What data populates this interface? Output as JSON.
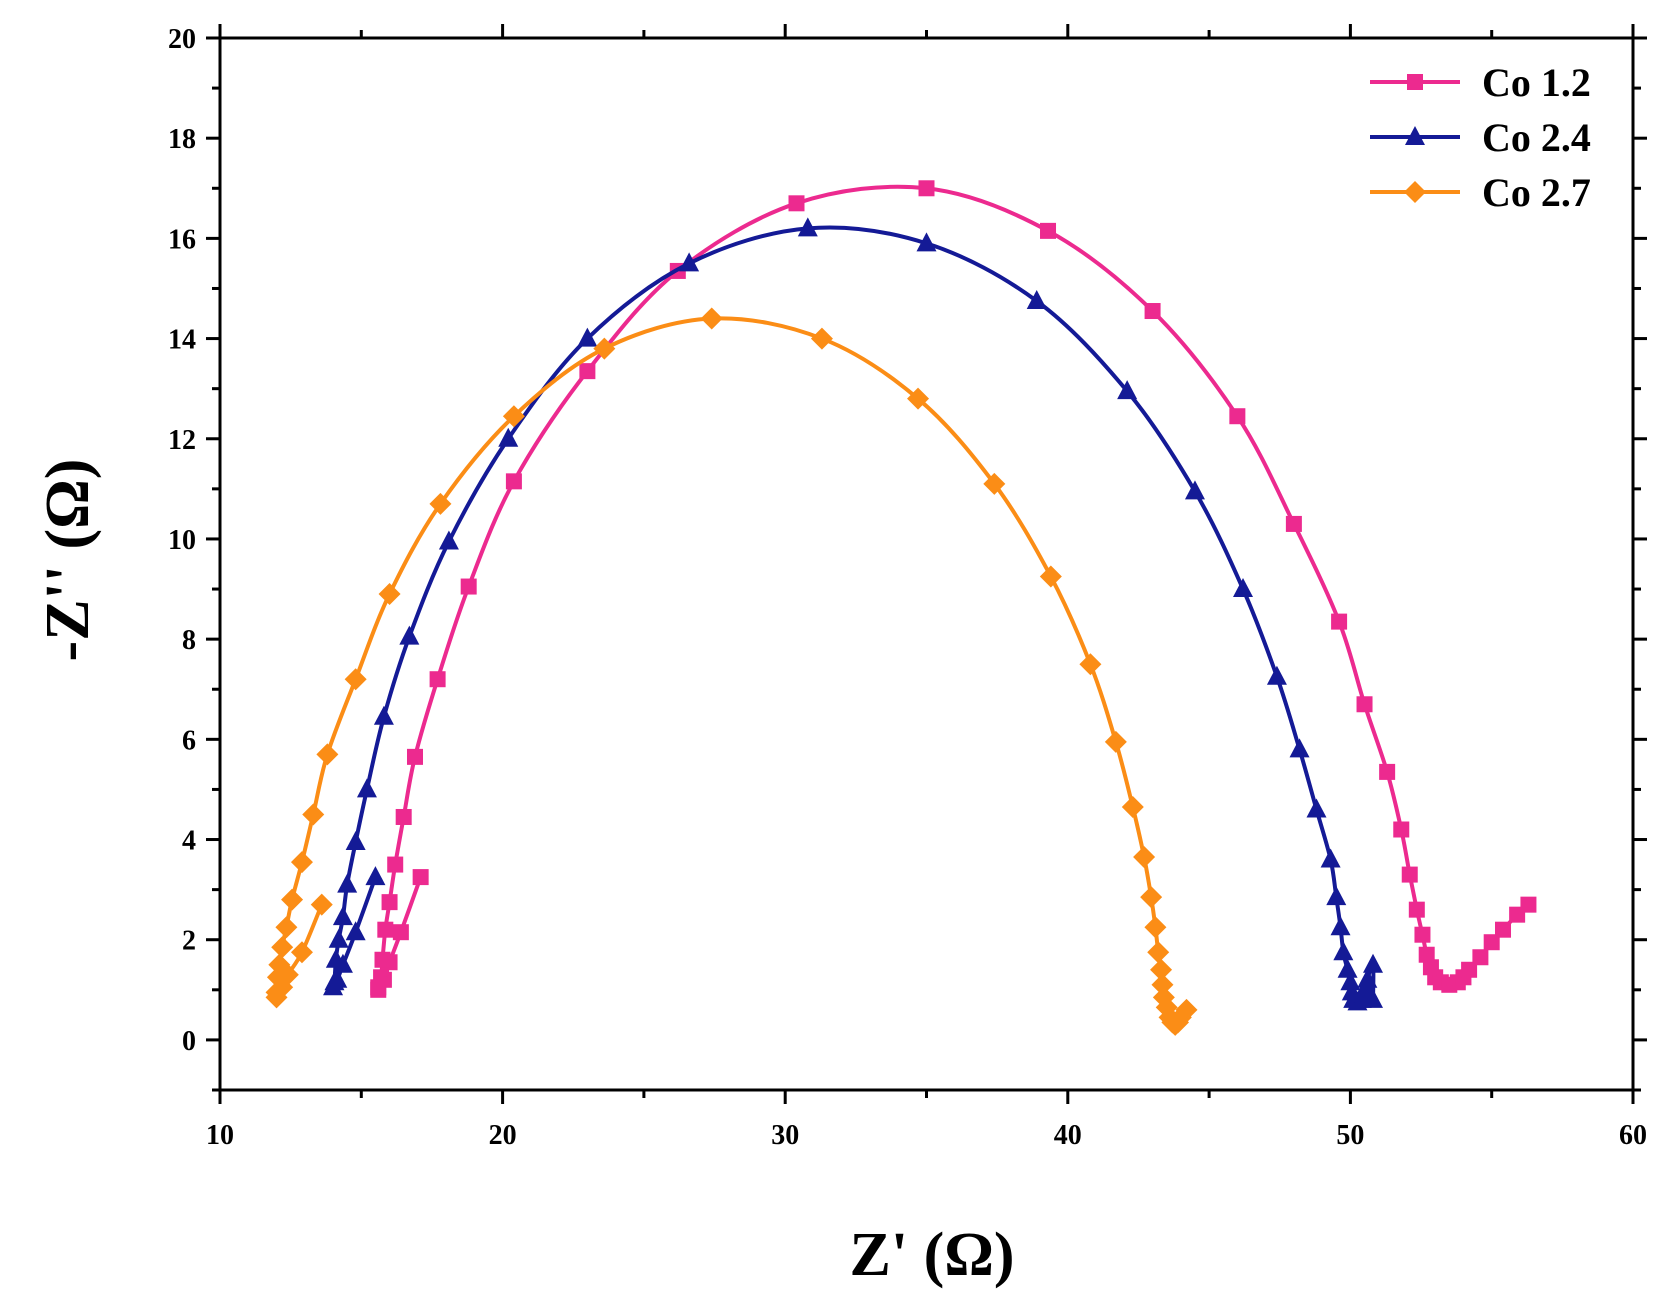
{
  "chart_data": {
    "type": "line",
    "title": "",
    "xlabel": "Z' (Ω)",
    "ylabel": "-Z'' (Ω)",
    "xlim": [
      10,
      60
    ],
    "ylim": [
      -1,
      20
    ],
    "x_ticks": [
      10,
      20,
      30,
      40,
      50,
      60
    ],
    "y_ticks": [
      0,
      2,
      4,
      6,
      8,
      10,
      12,
      14,
      16,
      18,
      20
    ],
    "x_tick_labels": [
      "10",
      "20",
      "30",
      "40",
      "50",
      "60"
    ],
    "y_tick_labels": [
      "0",
      "2",
      "4",
      "6",
      "8",
      "10",
      "12",
      "14",
      "16",
      "18",
      "20"
    ],
    "grid": false,
    "legend_position": "top-right",
    "series": [
      {
        "name": "Co 1.2",
        "color": "#ec2a8f",
        "marker": "square",
        "points": [
          [
            17.1,
            3.25
          ],
          [
            16.4,
            2.15
          ],
          [
            16.0,
            1.55
          ],
          [
            15.8,
            1.2
          ],
          [
            15.6,
            1.0
          ],
          [
            15.6,
            1.05
          ],
          [
            15.7,
            1.25
          ],
          [
            15.75,
            1.6
          ],
          [
            15.85,
            2.2
          ],
          [
            16.0,
            2.75
          ],
          [
            16.2,
            3.5
          ],
          [
            16.5,
            4.45
          ],
          [
            16.9,
            5.65
          ],
          [
            17.7,
            7.2
          ],
          [
            18.8,
            9.05
          ],
          [
            20.4,
            11.15
          ],
          [
            23.0,
            13.35
          ],
          [
            26.2,
            15.35
          ],
          [
            30.4,
            16.7
          ],
          [
            35.0,
            17.0
          ],
          [
            39.3,
            16.15
          ],
          [
            43.0,
            14.55
          ],
          [
            46.0,
            12.45
          ],
          [
            48.0,
            10.3
          ],
          [
            49.6,
            8.35
          ],
          [
            50.5,
            6.7
          ],
          [
            51.3,
            5.35
          ],
          [
            51.8,
            4.2
          ],
          [
            52.1,
            3.3
          ],
          [
            52.35,
            2.6
          ],
          [
            52.55,
            2.1
          ],
          [
            52.7,
            1.7
          ],
          [
            52.85,
            1.45
          ],
          [
            53.0,
            1.25
          ],
          [
            53.2,
            1.15
          ],
          [
            53.5,
            1.1
          ],
          [
            53.8,
            1.15
          ],
          [
            54.0,
            1.25
          ],
          [
            54.2,
            1.4
          ],
          [
            54.6,
            1.65
          ],
          [
            55.0,
            1.95
          ],
          [
            55.4,
            2.2
          ],
          [
            55.9,
            2.5
          ],
          [
            56.3,
            2.7
          ]
        ]
      },
      {
        "name": "Co 2.4",
        "color": "#141a96",
        "marker": "triangle",
        "points": [
          [
            15.5,
            3.25
          ],
          [
            14.8,
            2.15
          ],
          [
            14.35,
            1.5
          ],
          [
            14.15,
            1.2
          ],
          [
            14.0,
            1.05
          ],
          [
            14.05,
            1.15
          ],
          [
            14.1,
            1.6
          ],
          [
            14.2,
            2.0
          ],
          [
            14.35,
            2.45
          ],
          [
            14.5,
            3.1
          ],
          [
            14.8,
            3.95
          ],
          [
            15.2,
            5.0
          ],
          [
            15.8,
            6.45
          ],
          [
            16.7,
            8.05
          ],
          [
            18.1,
            9.95
          ],
          [
            20.2,
            12.0
          ],
          [
            23.0,
            14.0
          ],
          [
            26.6,
            15.5
          ],
          [
            30.8,
            16.2
          ],
          [
            35.0,
            15.9
          ],
          [
            38.9,
            14.75
          ],
          [
            42.1,
            12.95
          ],
          [
            44.5,
            10.95
          ],
          [
            46.2,
            9.0
          ],
          [
            47.4,
            7.25
          ],
          [
            48.2,
            5.8
          ],
          [
            48.8,
            4.6
          ],
          [
            49.3,
            3.6
          ],
          [
            49.5,
            2.85
          ],
          [
            49.65,
            2.25
          ],
          [
            49.75,
            1.75
          ],
          [
            49.9,
            1.4
          ],
          [
            50.0,
            1.15
          ],
          [
            50.05,
            0.95
          ],
          [
            50.1,
            0.8
          ],
          [
            50.25,
            0.75
          ],
          [
            50.4,
            0.8
          ],
          [
            50.5,
            0.9
          ],
          [
            50.55,
            1.05
          ],
          [
            50.6,
            1.2
          ],
          [
            50.8,
            1.5
          ],
          [
            50.8,
            0.8
          ]
        ]
      },
      {
        "name": "Co 2.7",
        "color": "#fb8d16",
        "marker": "diamond",
        "points": [
          [
            13.6,
            2.7
          ],
          [
            12.9,
            1.75
          ],
          [
            12.4,
            1.3
          ],
          [
            12.2,
            1.05
          ],
          [
            12.0,
            0.85
          ],
          [
            12.0,
            0.95
          ],
          [
            12.05,
            1.25
          ],
          [
            12.1,
            1.5
          ],
          [
            12.2,
            1.85
          ],
          [
            12.35,
            2.25
          ],
          [
            12.55,
            2.8
          ],
          [
            12.9,
            3.55
          ],
          [
            13.3,
            4.5
          ],
          [
            13.8,
            5.7
          ],
          [
            14.8,
            7.2
          ],
          [
            16.0,
            8.9
          ],
          [
            17.8,
            10.7
          ],
          [
            20.4,
            12.45
          ],
          [
            23.6,
            13.8
          ],
          [
            27.4,
            14.4
          ],
          [
            31.3,
            14.0
          ],
          [
            34.7,
            12.8
          ],
          [
            37.4,
            11.1
          ],
          [
            39.4,
            9.25
          ],
          [
            40.8,
            7.5
          ],
          [
            41.7,
            5.95
          ],
          [
            42.3,
            4.65
          ],
          [
            42.7,
            3.65
          ],
          [
            42.95,
            2.85
          ],
          [
            43.1,
            2.25
          ],
          [
            43.2,
            1.75
          ],
          [
            43.3,
            1.4
          ],
          [
            43.35,
            1.1
          ],
          [
            43.4,
            0.85
          ],
          [
            43.5,
            0.65
          ],
          [
            43.6,
            0.45
          ],
          [
            43.7,
            0.35
          ],
          [
            43.8,
            0.3
          ],
          [
            43.9,
            0.35
          ],
          [
            44.0,
            0.45
          ],
          [
            44.2,
            0.6
          ]
        ]
      }
    ]
  }
}
